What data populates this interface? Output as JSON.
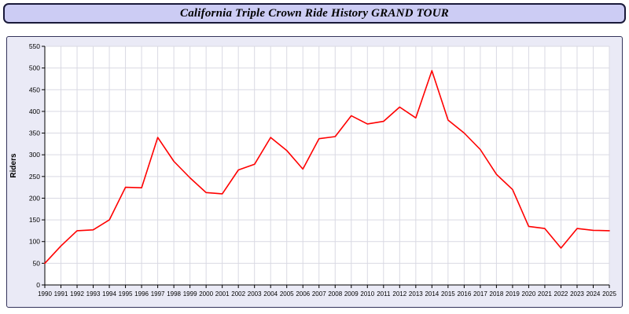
{
  "title": "California Triple Crown Ride History GRAND TOUR",
  "colors": {
    "title_bar_fill": "#ccccf4",
    "title_bar_border": "#1a1a3a",
    "panel_fill": "#eaeaf6",
    "panel_border": "#33335a",
    "plot_fill": "#ffffff",
    "grid": "#d9d9e3",
    "axis": "#000000",
    "line": "#ff0000",
    "text": "#000000"
  },
  "chart_data": {
    "type": "line",
    "title": "California Triple Crown Ride History GRAND TOUR",
    "xlabel": "",
    "ylabel": "Riders",
    "ylim": [
      0,
      550
    ],
    "y_tick_step": 50,
    "grid": true,
    "legend": "none",
    "line_color": "#ff0000",
    "x": [
      1990,
      1991,
      1992,
      1993,
      1994,
      1995,
      1996,
      1997,
      1998,
      1999,
      2000,
      2001,
      2002,
      2003,
      2004,
      2005,
      2006,
      2007,
      2008,
      2009,
      2010,
      2011,
      2012,
      2013,
      2014,
      2015,
      2016,
      2017,
      2018,
      2019,
      2020,
      2021,
      2022,
      2023,
      2024,
      2025
    ],
    "values": [
      50,
      90,
      125,
      127,
      150,
      225,
      224,
      340,
      285,
      247,
      213,
      210,
      265,
      278,
      340,
      310,
      267,
      337,
      342,
      390,
      371,
      377,
      410,
      385,
      494,
      380,
      350,
      312,
      255,
      220,
      135,
      130,
      85,
      130,
      126,
      125
    ]
  }
}
